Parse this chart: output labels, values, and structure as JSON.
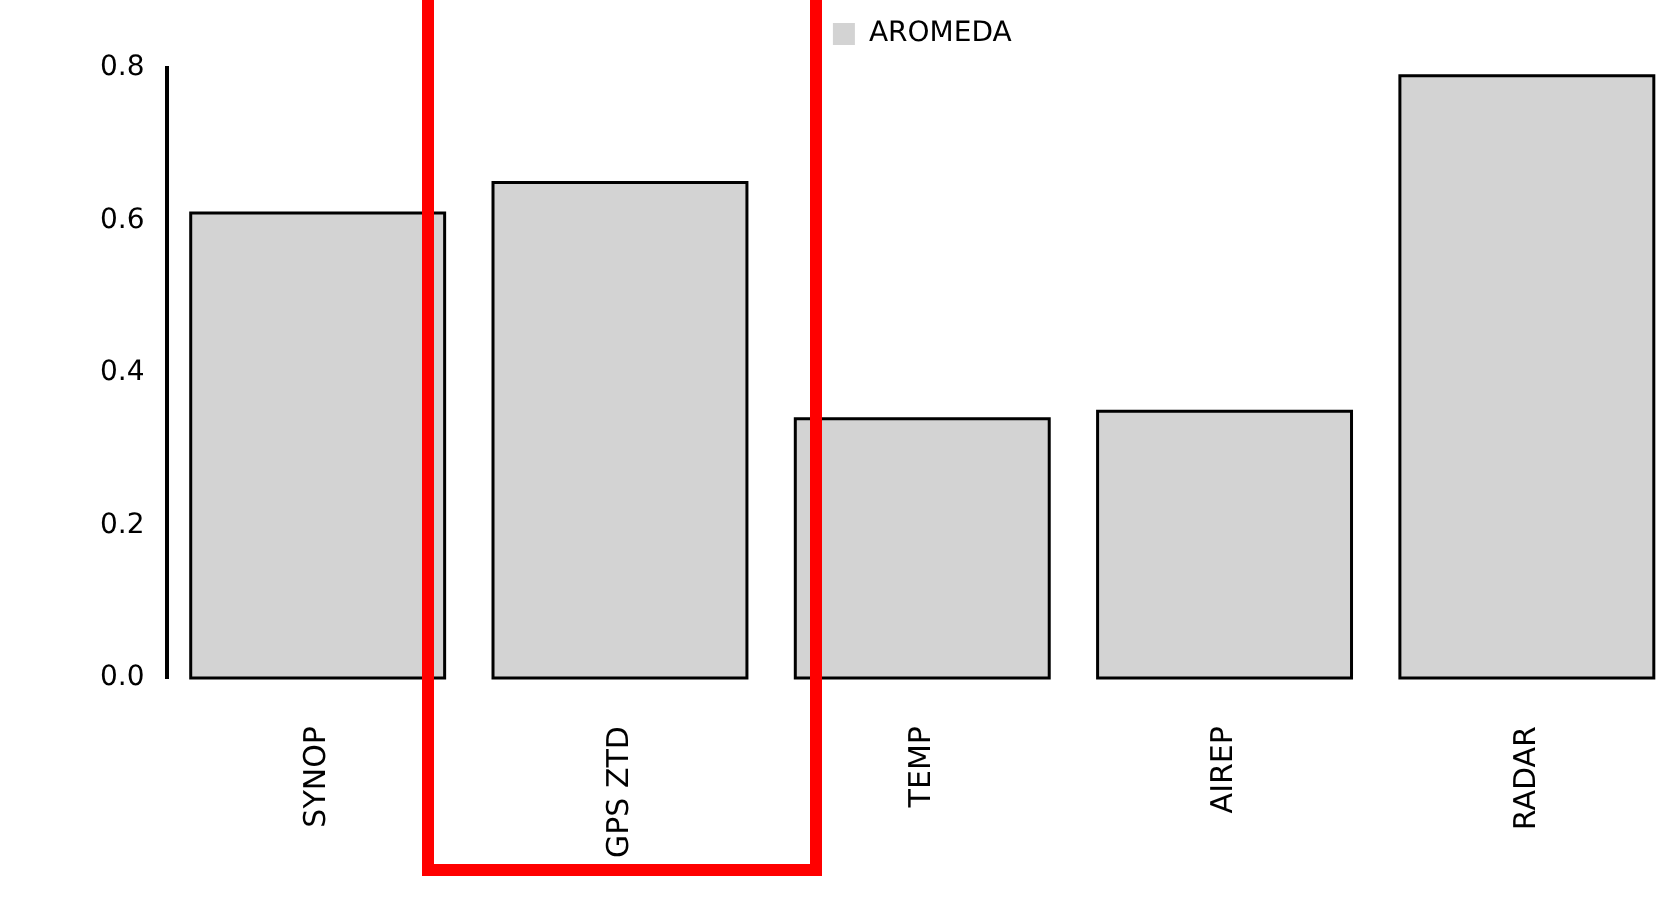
{
  "chart_data": {
    "type": "bar",
    "categories": [
      "SYNOP",
      "GPS ZTD",
      "TEMP",
      "AIREP",
      "RADAR"
    ],
    "series": [
      {
        "name": "AROMEDA",
        "color": "#d3d3d3",
        "values": [
          0.61,
          0.65,
          0.34,
          0.35,
          0.79
        ]
      }
    ],
    "ylim": [
      0,
      0.8
    ],
    "yticks": [
      {
        "value": 0,
        "label": "0.0"
      },
      {
        "value": 0.2,
        "label": "0.2"
      },
      {
        "value": 0.4,
        "label": "0.4"
      },
      {
        "value": 0.6,
        "label": "0.6"
      },
      {
        "value": 0.8,
        "label": "0.8"
      }
    ],
    "grid": false,
    "legend": "top"
  }
}
